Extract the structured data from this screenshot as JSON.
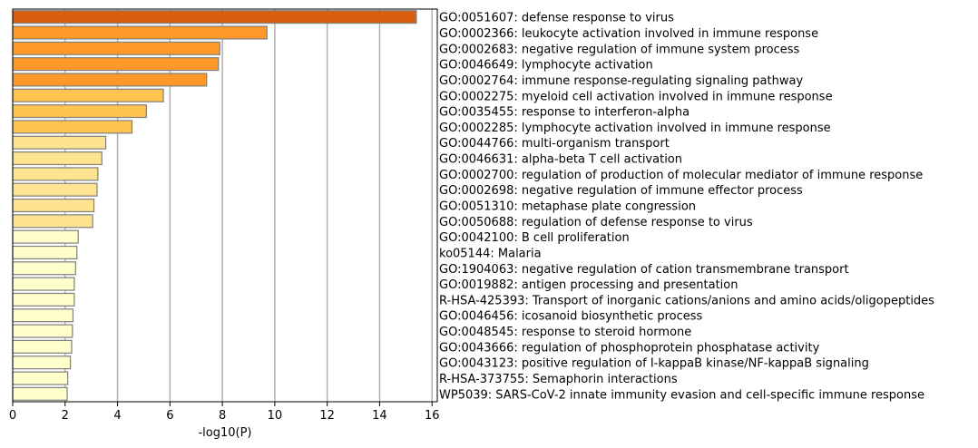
{
  "chart_data": {
    "type": "bar",
    "orientation": "horizontal",
    "xlabel": "-log10(P)",
    "xlim": [
      0,
      16.2
    ],
    "xticks": [
      0,
      2,
      4,
      6,
      8,
      10,
      12,
      14,
      16
    ],
    "grid": "vertical lines at even ticks",
    "categories": [
      "GO:0051607: defense response to virus",
      "GO:0002366: leukocyte activation involved in immune response",
      "GO:0002683: negative regulation of immune system process",
      "GO:0046649: lymphocyte activation",
      "GO:0002764: immune response-regulating signaling pathway",
      "GO:0002275: myeloid cell activation involved in immune response",
      "GO:0035455: response to interferon-alpha",
      "GO:0002285: lymphocyte activation involved in immune response",
      "GO:0044766: multi-organism transport",
      "GO:0046631: alpha-beta T cell activation",
      "GO:0002700: regulation of production of molecular mediator of immune response",
      "GO:0002698: negative regulation of immune effector process",
      "GO:0051310: metaphase plate congression",
      "GO:0050688: regulation of defense response to virus",
      "GO:0042100: B cell proliferation",
      "ko05144: Malaria",
      "GO:1904063: negative regulation of cation transmembrane transport",
      "GO:0019882: antigen processing and presentation",
      "R-HSA-425393: Transport of inorganic cations/anions and amino acids/oligopeptides",
      "GO:0046456: icosanoid biosynthetic process",
      "GO:0048545: response to steroid hormone",
      "GO:0043666: regulation of phosphoprotein phosphatase activity",
      "GO:0043123: positive regulation of I-kappaB kinase/NF-kappaB signaling",
      "R-HSA-373755: Semaphorin interactions",
      "WP5039: SARS-CoV-2 innate immunity evasion and cell-specific immune response"
    ],
    "values": [
      15.4,
      9.7,
      7.9,
      7.85,
      7.4,
      5.75,
      5.1,
      4.55,
      3.55,
      3.4,
      3.25,
      3.22,
      3.1,
      3.05,
      2.5,
      2.45,
      2.4,
      2.35,
      2.35,
      2.3,
      2.28,
      2.25,
      2.2,
      2.1,
      2.08
    ],
    "colors": [
      "#d95f0e",
      "#fe9929",
      "#fe9929",
      "#fe9929",
      "#fe9929",
      "#fec44f",
      "#fec44f",
      "#fec44f",
      "#fee391",
      "#fee391",
      "#fee391",
      "#fee391",
      "#fee391",
      "#fee391",
      "#ffffcc",
      "#ffffcc",
      "#ffffcc",
      "#ffffcc",
      "#ffffcc",
      "#ffffcc",
      "#ffffcc",
      "#ffffcc",
      "#ffffcc",
      "#ffffcc",
      "#ffffcc"
    ],
    "bar_edge_color": "#7f7f7f",
    "grid_color": "#b0b0b0"
  }
}
